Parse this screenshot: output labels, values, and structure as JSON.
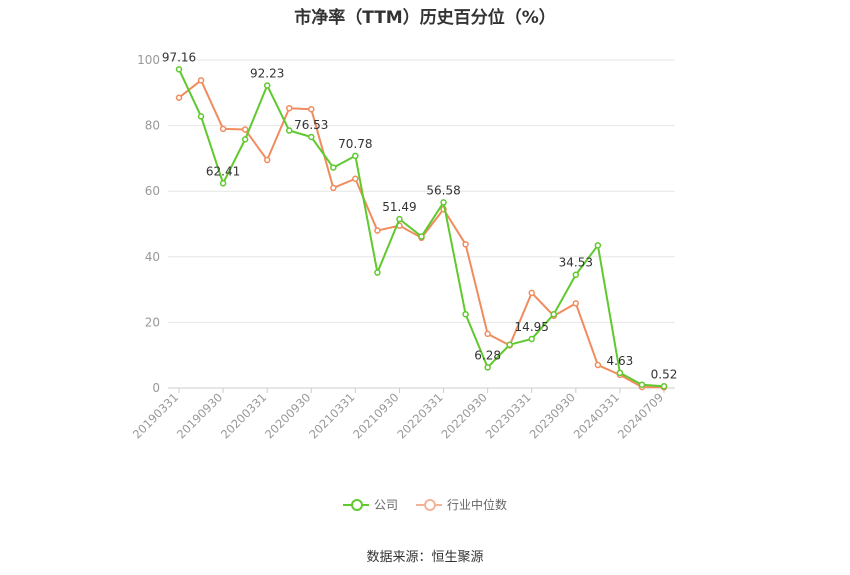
{
  "chart_data": {
    "type": "line",
    "title": "市净率（TTM）历史百分位（%）",
    "ylim": [
      0,
      100
    ],
    "yticks": [
      0,
      20,
      40,
      60,
      80,
      100
    ],
    "x_tick_labels": [
      "20190331",
      "20190930",
      "20200331",
      "20200930",
      "20210331",
      "20210930",
      "20220331",
      "20220930",
      "20230331",
      "20230930",
      "20240331",
      "20240709"
    ],
    "x": [
      "20190331",
      "20190630",
      "20190930",
      "20191231",
      "20200331",
      "20200630",
      "20200930",
      "20201231",
      "20210331",
      "20210630",
      "20210930",
      "20211231",
      "20220331",
      "20220630",
      "20220930",
      "20221231",
      "20230331",
      "20230630",
      "20230930",
      "20231231",
      "20240331",
      "20240630",
      "20240709"
    ],
    "series": [
      {
        "name": "公司",
        "color": "#5fc92e",
        "values": [
          97.16,
          82.8,
          62.41,
          75.8,
          92.23,
          78.5,
          76.53,
          67.2,
          70.78,
          35.2,
          51.49,
          46.2,
          56.58,
          22.5,
          6.28,
          13.2,
          14.95,
          22.5,
          34.53,
          43.5,
          4.63,
          1.0,
          0.52
        ]
      },
      {
        "name": "行业中位数",
        "color": "#f08c5e",
        "values": [
          88.5,
          93.8,
          79.0,
          78.8,
          69.5,
          85.3,
          85.0,
          61.0,
          63.8,
          48.0,
          49.5,
          45.8,
          54.5,
          43.8,
          16.5,
          13.0,
          29.0,
          22.0,
          25.8,
          7.0,
          4.0,
          0.3,
          0.2
        ]
      }
    ],
    "data_labels": [
      {
        "index": 0,
        "text": "97.16"
      },
      {
        "index": 2,
        "text": "62.41"
      },
      {
        "index": 4,
        "text": "92.23"
      },
      {
        "index": 6,
        "text": "76.53"
      },
      {
        "index": 8,
        "text": "70.78"
      },
      {
        "index": 10,
        "text": "51.49"
      },
      {
        "index": 12,
        "text": "56.58"
      },
      {
        "index": 14,
        "text": "6.28"
      },
      {
        "index": 16,
        "text": "14.95"
      },
      {
        "index": 18,
        "text": "34.53"
      },
      {
        "index": 20,
        "text": "4.63"
      },
      {
        "index": 22,
        "text": "0.52"
      }
    ],
    "grid": true,
    "legend_position": "bottom"
  },
  "legend": {
    "company": "公司",
    "industry": "行业中位数"
  },
  "source": "数据来源：恒生聚源"
}
